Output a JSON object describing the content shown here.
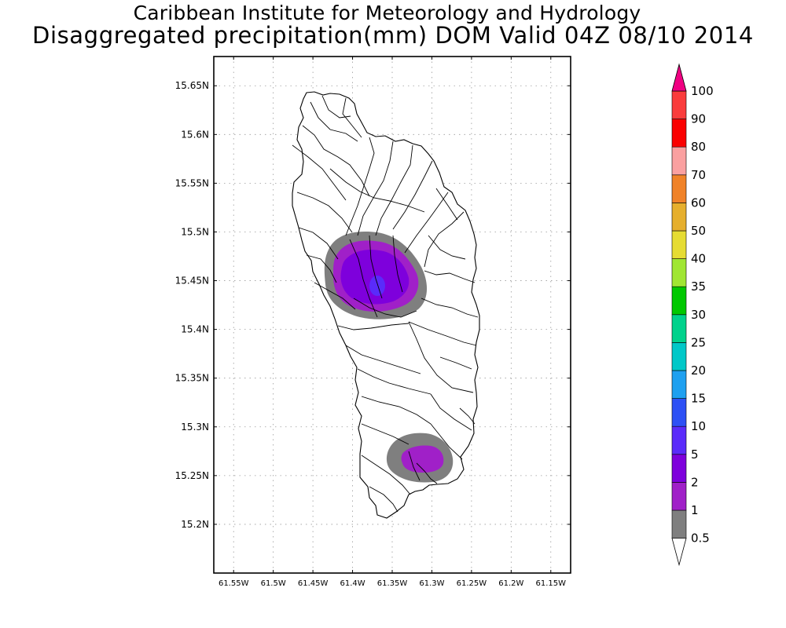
{
  "header": {
    "institute": "Caribbean Institute for Meteorology and Hydrology",
    "product": "Disaggregated precipitation(mm) DOM Valid 04Z 08/10 2014"
  },
  "map": {
    "lat_range": [
      15.15,
      15.68
    ],
    "lon_range": [
      -61.575,
      -61.125
    ],
    "lat_ticks": [
      "15.2N",
      "15.25N",
      "15.3N",
      "15.35N",
      "15.4N",
      "15.45N",
      "15.5N",
      "15.55N",
      "15.6N",
      "15.65N"
    ],
    "lon_ticks": [
      "61.55W",
      "61.5W",
      "61.45W",
      "61.4W",
      "61.35W",
      "61.3W",
      "61.25W",
      "61.2W",
      "61.15W"
    ],
    "grid": "dotted",
    "region": "Dominica",
    "precip_areas": [
      {
        "name": "central",
        "center_lat": 15.447,
        "center_lon": -61.38,
        "max_category": "10"
      },
      {
        "name": "south",
        "center_lat": 15.268,
        "center_lon": -61.312,
        "max_category": "2"
      }
    ]
  },
  "colorbar": {
    "levels": [
      "0.5",
      "1",
      "2",
      "5",
      "10",
      "15",
      "20",
      "25",
      "30",
      "35",
      "40",
      "50",
      "60",
      "70",
      "80",
      "90",
      "100"
    ],
    "colors": [
      "#ffffff",
      "#7f7f7f",
      "#a020c8",
      "#7e00dc",
      "#5a2bfa",
      "#2d50f5",
      "#1ea0f0",
      "#00c8c8",
      "#00d28c",
      "#00c800",
      "#a0e632",
      "#e6dc32",
      "#e6af2d",
      "#f08228",
      "#faa0a0",
      "#fa0000",
      "#fa3c3c",
      "#f00082"
    ]
  }
}
